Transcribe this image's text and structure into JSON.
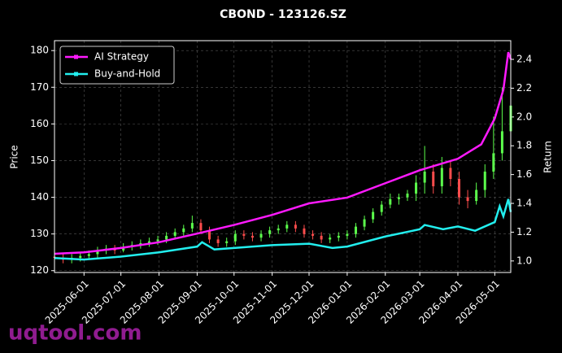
{
  "chart_data": {
    "type": "candlestick",
    "title": "CBOND - 123126.SZ",
    "ylabel": "Price",
    "y2label": "Return",
    "watermark": "uqtool.com",
    "xlim": [
      "2025-05-08",
      "2026-05-14"
    ],
    "xticks": [
      "2025-06-01",
      "2025-07-01",
      "2025-08-01",
      "2025-09-01",
      "2025-10-01",
      "2025-11-01",
      "2025-12-01",
      "2026-01-01",
      "2026-02-01",
      "2026-03-01",
      "2026-04-01",
      "2026-05-01"
    ],
    "ylim": [
      119.5,
      182.7
    ],
    "yticks": [
      120,
      130,
      140,
      150,
      160,
      170,
      180
    ],
    "y2lim": [
      0.92,
      2.53
    ],
    "y2ticks": [
      {
        "value": 1.0,
        "label": "1.0"
      },
      1.2,
      1.4,
      1.6,
      1.8,
      {
        "value": 2.0,
        "label": "2.0"
      },
      2.2,
      2.4
    ],
    "grid": true,
    "legend": "upper-left",
    "up_color": "#5cff4c",
    "down_color": "#ff4c4c",
    "candles": {
      "x": [
        "2025-05-08",
        "2025-05-15",
        "2025-05-22",
        "2025-05-29",
        "2025-06-05",
        "2025-06-12",
        "2025-06-19",
        "2025-06-26",
        "2025-07-03",
        "2025-07-10",
        "2025-07-17",
        "2025-07-24",
        "2025-07-31",
        "2025-08-07",
        "2025-08-14",
        "2025-08-21",
        "2025-08-28",
        "2025-09-04",
        "2025-09-11",
        "2025-09-18",
        "2025-09-25",
        "2025-10-02",
        "2025-10-09",
        "2025-10-16",
        "2025-10-23",
        "2025-10-30",
        "2025-11-06",
        "2025-11-13",
        "2025-11-20",
        "2025-11-27",
        "2025-12-04",
        "2025-12-11",
        "2025-12-18",
        "2025-12-25",
        "2026-01-01",
        "2026-01-08",
        "2026-01-15",
        "2026-01-22",
        "2026-01-29",
        "2026-02-05",
        "2026-02-12",
        "2026-02-19",
        "2026-02-26",
        "2026-03-05",
        "2026-03-12",
        "2026-03-19",
        "2026-03-26",
        "2026-04-02",
        "2026-04-09",
        "2026-04-16",
        "2026-04-23",
        "2026-04-30",
        "2026-05-07",
        "2026-05-14"
      ],
      "open": [
        123.8,
        123.5,
        123,
        123.5,
        124,
        124.5,
        125.5,
        126,
        125.5,
        126.5,
        127,
        127.5,
        128,
        128.5,
        129.5,
        130.5,
        131.5,
        133,
        131,
        128.5,
        127.5,
        128,
        130,
        129.5,
        129,
        130,
        131,
        131.5,
        132.5,
        131.5,
        130,
        129.5,
        128.5,
        129,
        129.5,
        130,
        132,
        134,
        136,
        138,
        139.5,
        140,
        141,
        144,
        147,
        143,
        148,
        145,
        140,
        139,
        142,
        147,
        152,
        158
      ],
      "high": [
        124.8,
        124.5,
        124.5,
        125,
        125.5,
        126.5,
        127,
        127,
        127.5,
        128,
        128.5,
        129,
        129.5,
        130.5,
        131.5,
        132.5,
        135,
        134,
        132,
        129.5,
        129,
        131,
        131,
        130.5,
        131,
        132,
        132.5,
        133.5,
        133.5,
        132.5,
        131,
        130.5,
        130,
        130.5,
        131,
        133,
        135,
        137,
        139,
        141,
        141,
        142,
        146,
        154,
        149,
        151,
        150,
        147,
        142,
        144,
        149,
        162,
        170,
        178
      ],
      "low": [
        122.8,
        122,
        122,
        122.5,
        123,
        123.5,
        124.5,
        124.5,
        125,
        125.5,
        126,
        126.5,
        127,
        127.5,
        128.5,
        129.5,
        130.5,
        130,
        127.5,
        126.5,
        126.5,
        127,
        128.5,
        128,
        128,
        129,
        130,
        130.5,
        130.5,
        129,
        128.5,
        127.5,
        127.5,
        128,
        128.5,
        129,
        131,
        133,
        135,
        137,
        138,
        139,
        139,
        141,
        141,
        141,
        143,
        138,
        137,
        138,
        140,
        145,
        150,
        154
      ],
      "close": [
        123.5,
        123,
        123.5,
        124,
        124.5,
        125.5,
        126,
        125.5,
        126.5,
        127,
        127.5,
        128,
        128.5,
        129.5,
        130.5,
        131.5,
        133,
        131,
        128.5,
        127.5,
        128,
        130,
        129.5,
        129,
        130,
        131,
        131.5,
        132.5,
        131.5,
        130,
        129.5,
        128.5,
        129,
        129.5,
        130,
        132,
        134,
        136,
        138,
        139.5,
        140,
        141,
        144,
        147,
        143,
        148,
        145,
        140,
        139,
        142,
        147,
        152,
        158,
        165
      ]
    },
    "series": [
      {
        "name": "AI Strategy",
        "color": "#ff1aff",
        "axis": "y2",
        "x": [
          "2025-05-08",
          "2025-06-01",
          "2025-07-01",
          "2025-08-01",
          "2025-09-01",
          "2025-10-01",
          "2025-11-01",
          "2025-12-01",
          "2026-01-01",
          "2026-02-01",
          "2026-03-01",
          "2026-04-01",
          "2026-04-20",
          "2026-05-01",
          "2026-05-08",
          "2026-05-12",
          "2026-05-14"
        ],
        "values": [
          1.05,
          1.06,
          1.09,
          1.13,
          1.19,
          1.25,
          1.32,
          1.4,
          1.44,
          1.54,
          1.63,
          1.71,
          1.81,
          1.99,
          2.19,
          2.45,
          2.4
        ]
      },
      {
        "name": "Buy-and-Hold",
        "color": "#22eeee",
        "axis": "y2",
        "x": [
          "2025-05-08",
          "2025-06-01",
          "2025-07-01",
          "2025-08-01",
          "2025-09-01",
          "2025-09-05",
          "2025-09-15",
          "2025-10-01",
          "2025-11-01",
          "2025-12-01",
          "2025-12-20",
          "2026-01-01",
          "2026-02-01",
          "2026-03-01",
          "2026-03-05",
          "2026-03-20",
          "2026-04-01",
          "2026-04-15",
          "2026-05-01",
          "2026-05-05",
          "2026-05-08",
          "2026-05-12",
          "2026-05-14"
        ],
        "values": [
          1.02,
          1.01,
          1.03,
          1.06,
          1.1,
          1.13,
          1.08,
          1.09,
          1.11,
          1.12,
          1.09,
          1.1,
          1.17,
          1.22,
          1.25,
          1.22,
          1.24,
          1.21,
          1.27,
          1.38,
          1.31,
          1.43,
          1.34
        ]
      }
    ]
  }
}
